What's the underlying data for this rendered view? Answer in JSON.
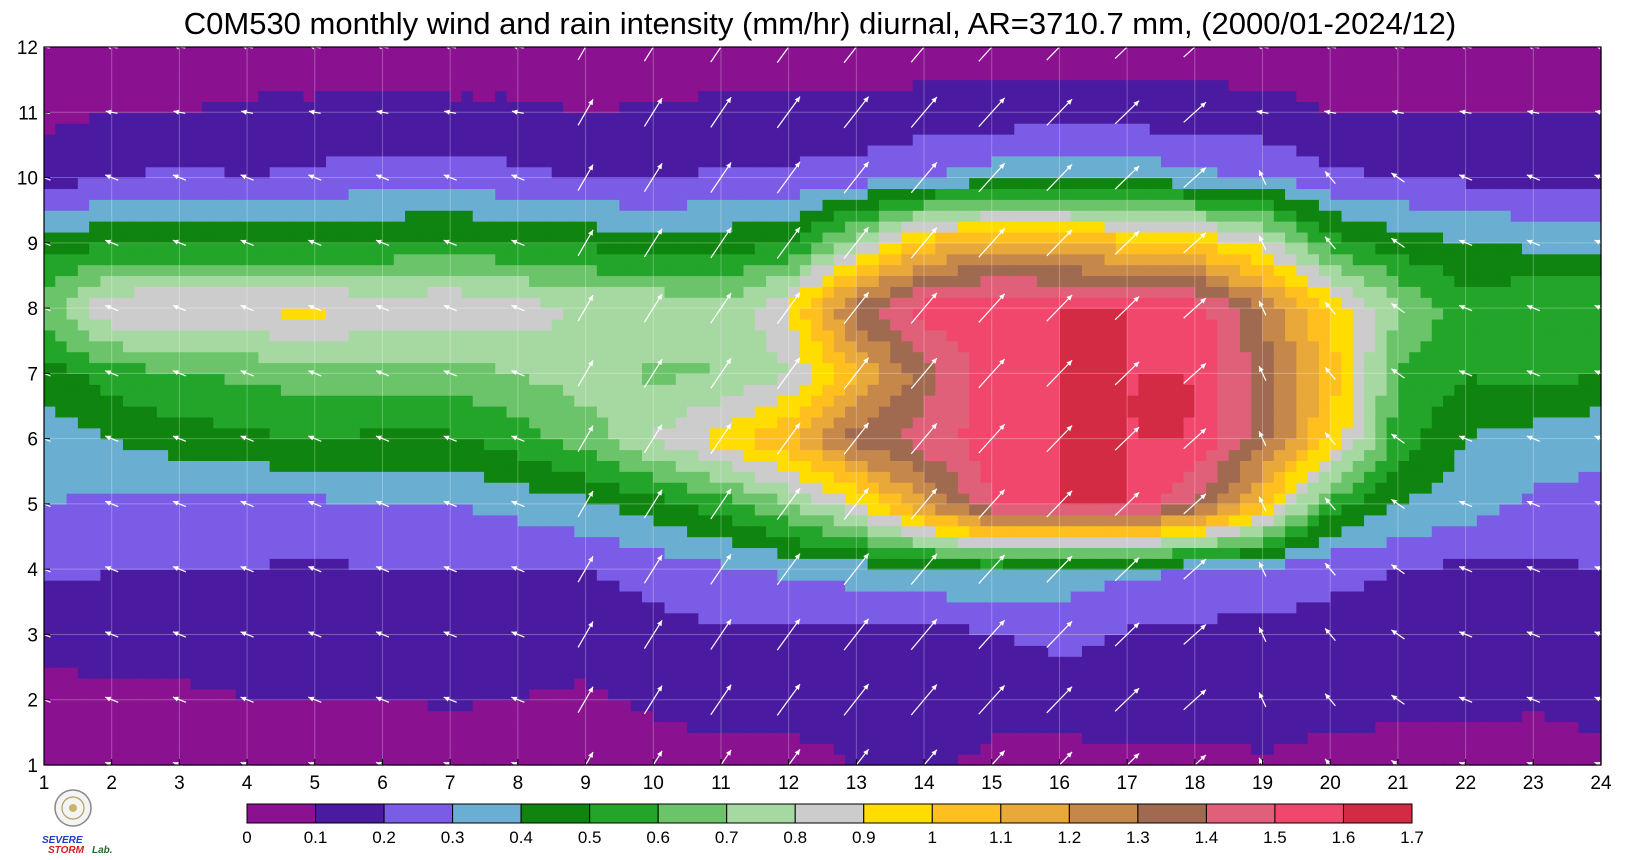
{
  "chart_data": {
    "type": "heatmap",
    "title": "C0M530 monthly wind and rain intensity (mm/hr) diurnal, AR=3710.7 mm, (2000/01-2024/12)",
    "xlabel": "",
    "ylabel": "",
    "xlim": [
      1,
      24
    ],
    "ylim": [
      1,
      12
    ],
    "x": [
      1,
      2,
      3,
      4,
      5,
      6,
      7,
      8,
      9,
      10,
      11,
      12,
      13,
      14,
      15,
      16,
      17,
      18,
      19,
      20,
      21,
      22,
      23,
      24
    ],
    "y": [
      1,
      2,
      3,
      4,
      5,
      6,
      7,
      8,
      9,
      10,
      11,
      12
    ],
    "x_tick_labels": [
      "1",
      "2",
      "3",
      "4",
      "5",
      "6",
      "7",
      "8",
      "9",
      "10",
      "11",
      "12",
      "13",
      "14",
      "15",
      "16",
      "17",
      "18",
      "19",
      "20",
      "21",
      "22",
      "23",
      "24"
    ],
    "y_tick_labels": [
      "1",
      "2",
      "3",
      "4",
      "5",
      "6",
      "7",
      "8",
      "9",
      "10",
      "11",
      "12"
    ],
    "grid": true,
    "colorbar": {
      "levels": [
        0,
        0.1,
        0.2,
        0.3,
        0.4,
        0.5,
        0.6,
        0.7,
        0.8,
        0.9,
        1,
        1.1,
        1.2,
        1.3,
        1.4,
        1.5,
        1.6,
        1.7
      ],
      "labels": [
        "0",
        "0.1",
        "0.2",
        "0.3",
        "0.4",
        "0.5",
        "0.6",
        "0.7",
        "0.8",
        "0.9",
        "1",
        "1.1",
        "1.2",
        "1.3",
        "1.4",
        "1.5",
        "1.6",
        "1.7"
      ],
      "colors": [
        "#8a1190",
        "#4a1ba0",
        "#7b5ce6",
        "#6aaed1",
        "#0f8510",
        "#23a52a",
        "#6cc46a",
        "#a6d9a2",
        "#cccccc",
        "#ffdd00",
        "#ffbf1e",
        "#e8a83a",
        "#c5884a",
        "#a06a50",
        "#e0607a",
        "#f2476c",
        "#d42b44"
      ]
    },
    "z_rows_by_month": [
      [
        0.02,
        0.04,
        0.03,
        0.02,
        0.02,
        0.01,
        0.03,
        0.04,
        0.02,
        0.04,
        0.07,
        0.06,
        0.1,
        0.12,
        0.08,
        0.07,
        0.06,
        0.06,
        0.08,
        0.04,
        0.04,
        0.04,
        0.03,
        0.06
      ],
      [
        0.06,
        0.08,
        0.08,
        0.1,
        0.1,
        0.1,
        0.11,
        0.1,
        0.08,
        0.12,
        0.14,
        0.14,
        0.15,
        0.16,
        0.12,
        0.14,
        0.16,
        0.16,
        0.18,
        0.15,
        0.14,
        0.14,
        0.12,
        0.14
      ],
      [
        0.14,
        0.15,
        0.15,
        0.15,
        0.15,
        0.15,
        0.15,
        0.15,
        0.15,
        0.17,
        0.18,
        0.18,
        0.16,
        0.16,
        0.19,
        0.23,
        0.19,
        0.17,
        0.17,
        0.17,
        0.17,
        0.17,
        0.17,
        0.17
      ],
      [
        0.22,
        0.2,
        0.2,
        0.2,
        0.18,
        0.2,
        0.2,
        0.2,
        0.2,
        0.23,
        0.28,
        0.32,
        0.35,
        0.38,
        0.42,
        0.36,
        0.32,
        0.3,
        0.26,
        0.22,
        0.2,
        0.18,
        0.18,
        0.2
      ],
      [
        0.3,
        0.28,
        0.28,
        0.28,
        0.28,
        0.3,
        0.3,
        0.33,
        0.38,
        0.45,
        0.55,
        0.7,
        0.88,
        1.2,
        1.5,
        1.6,
        1.6,
        1.4,
        1.05,
        0.55,
        0.4,
        0.35,
        0.28,
        0.28
      ],
      [
        0.34,
        0.4,
        0.45,
        0.48,
        0.5,
        0.48,
        0.48,
        0.55,
        0.65,
        0.8,
        0.95,
        1.1,
        1.35,
        1.45,
        1.55,
        1.6,
        1.6,
        1.6,
        1.35,
        1.0,
        0.55,
        0.4,
        0.35,
        0.32
      ],
      [
        0.45,
        0.55,
        0.6,
        0.62,
        0.65,
        0.65,
        0.66,
        0.7,
        0.75,
        0.68,
        0.7,
        0.8,
        1.1,
        1.35,
        1.55,
        1.6,
        1.6,
        1.6,
        1.35,
        1.05,
        0.6,
        0.5,
        0.55,
        0.5
      ],
      [
        0.65,
        0.9,
        0.92,
        0.92,
        0.93,
        0.88,
        0.9,
        0.86,
        0.78,
        0.8,
        0.72,
        0.9,
        1.35,
        1.55,
        1.6,
        1.6,
        1.6,
        1.55,
        1.3,
        1.0,
        0.7,
        0.55,
        0.6,
        0.6
      ],
      [
        0.45,
        0.48,
        0.48,
        0.47,
        0.48,
        0.5,
        0.52,
        0.5,
        0.48,
        0.42,
        0.45,
        0.5,
        0.75,
        1.05,
        1.15,
        1.1,
        1.05,
        1.0,
        0.85,
        0.55,
        0.45,
        0.4,
        0.38,
        0.38
      ],
      [
        0.15,
        0.2,
        0.22,
        0.2,
        0.22,
        0.25,
        0.25,
        0.22,
        0.2,
        0.18,
        0.22,
        0.22,
        0.25,
        0.3,
        0.35,
        0.4,
        0.38,
        0.32,
        0.3,
        0.22,
        0.2,
        0.18,
        0.18,
        0.15
      ],
      [
        0.08,
        0.1,
        0.1,
        0.12,
        0.12,
        0.13,
        0.12,
        0.12,
        0.1,
        0.11,
        0.12,
        0.12,
        0.12,
        0.14,
        0.14,
        0.15,
        0.15,
        0.14,
        0.13,
        0.1,
        0.1,
        0.1,
        0.1,
        0.1
      ],
      [
        0.05,
        0.04,
        0.04,
        0.04,
        0.04,
        0.04,
        0.04,
        0.04,
        0.04,
        0.05,
        0.05,
        0.06,
        0.05,
        0.05,
        0.05,
        0.06,
        0.06,
        0.05,
        0.05,
        0.05,
        0.05,
        0.05,
        0.05,
        0.04
      ]
    ],
    "wind_arrows": "white arrows on every hour/month grid point; daytime arrows (hours 9-18) point north-east and are longer, night arrows point west/north-west",
    "logo_text": [
      "SEVERE",
      "STORM",
      "Lab."
    ]
  }
}
